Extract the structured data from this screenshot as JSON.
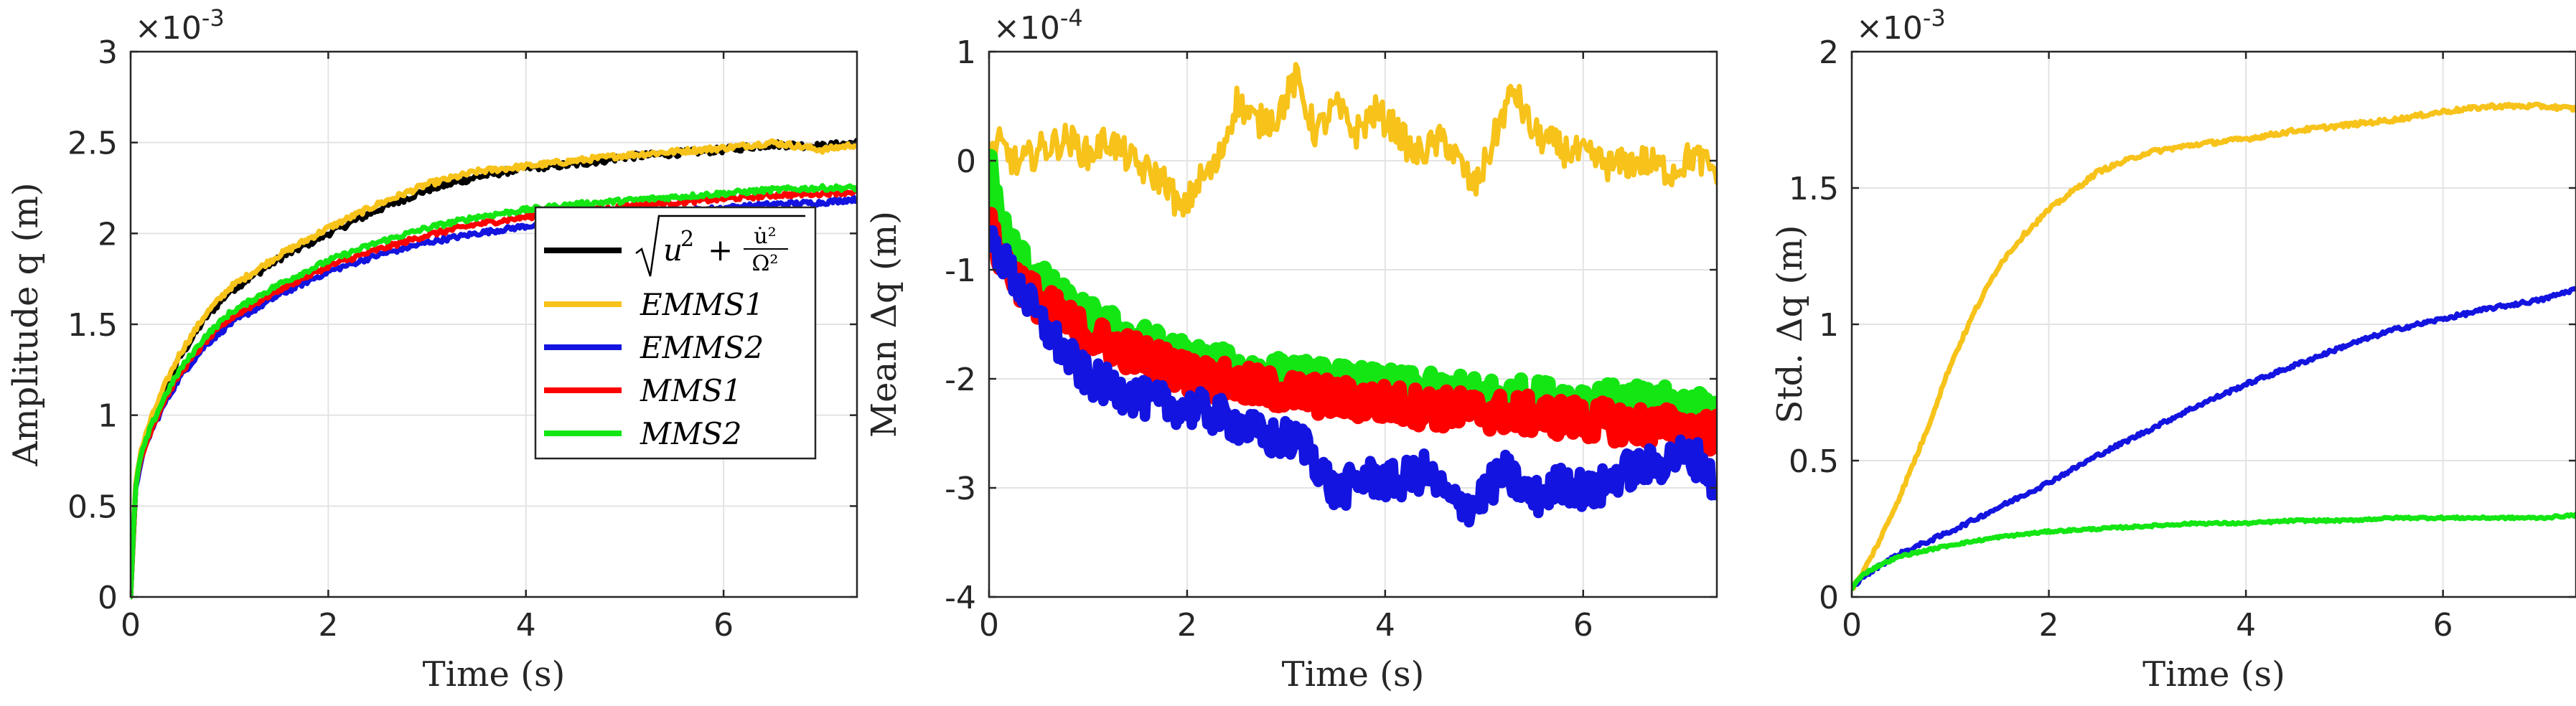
{
  "chart_data": [
    {
      "type": "line",
      "xlabel": "Time (s)",
      "ylabel": "Amplitude q (m)",
      "exponent": "×10",
      "exponent_power": "-3",
      "xlim": [
        0,
        7.35
      ],
      "ylim": [
        0,
        3
      ],
      "xticks": [
        "0",
        "2",
        "4",
        "6"
      ],
      "yticks": [
        "0",
        "0.5",
        "1",
        "1.5",
        "2",
        "2.5",
        "3"
      ],
      "grid": true,
      "legend_position": "right",
      "series": [
        {
          "name": "√(u² + u̇²/Ω²)",
          "color": "#000000",
          "noise": 0.012,
          "x": [
            0,
            0.05,
            0.1,
            0.2,
            0.35,
            0.5,
            0.75,
            1.0,
            1.5,
            2.0,
            2.5,
            3.0,
            3.5,
            4.0,
            4.5,
            5.0,
            5.5,
            6.0,
            6.5,
            7.0,
            7.35
          ],
          "y": [
            0,
            0.6,
            0.78,
            0.95,
            1.15,
            1.32,
            1.53,
            1.68,
            1.86,
            2.0,
            2.13,
            2.24,
            2.31,
            2.36,
            2.38,
            2.42,
            2.44,
            2.46,
            2.49,
            2.48,
            2.5
          ]
        },
        {
          "name": "EMMS1",
          "color": "#f7c31a",
          "noise": 0.01,
          "x": [
            0,
            0.05,
            0.1,
            0.2,
            0.35,
            0.5,
            0.75,
            1.0,
            1.5,
            2.0,
            2.5,
            3.0,
            3.5,
            4.0,
            4.5,
            5.0,
            5.5,
            6.0,
            6.5,
            7.0,
            7.35
          ],
          "y": [
            0,
            0.62,
            0.8,
            0.97,
            1.17,
            1.34,
            1.55,
            1.7,
            1.88,
            2.03,
            2.16,
            2.27,
            2.34,
            2.37,
            2.4,
            2.43,
            2.45,
            2.47,
            2.5,
            2.46,
            2.49
          ]
        },
        {
          "name": "EMMS2",
          "color": "#1414e0",
          "noise": 0.009,
          "x": [
            0,
            0.05,
            0.1,
            0.2,
            0.35,
            0.5,
            0.75,
            1.0,
            1.5,
            2.0,
            2.5,
            3.0,
            3.5,
            4.0,
            4.5,
            5.0,
            5.5,
            6.0,
            6.5,
            7.0,
            7.35
          ],
          "y": [
            0,
            0.58,
            0.74,
            0.9,
            1.07,
            1.21,
            1.38,
            1.5,
            1.66,
            1.79,
            1.88,
            1.95,
            2.0,
            2.04,
            2.07,
            2.1,
            2.12,
            2.14,
            2.16,
            2.17,
            2.19
          ]
        },
        {
          "name": "MMS1",
          "color": "#ff0000",
          "noise": 0.009,
          "x": [
            0,
            0.05,
            0.1,
            0.2,
            0.35,
            0.5,
            0.75,
            1.0,
            1.5,
            2.0,
            2.5,
            3.0,
            3.5,
            4.0,
            4.5,
            5.0,
            5.5,
            6.0,
            6.5,
            7.0,
            7.35
          ],
          "y": [
            0,
            0.59,
            0.75,
            0.91,
            1.09,
            1.23,
            1.4,
            1.53,
            1.69,
            1.82,
            1.91,
            1.99,
            2.05,
            2.09,
            2.12,
            2.15,
            2.17,
            2.19,
            2.21,
            2.22,
            2.23
          ]
        },
        {
          "name": "MMS2",
          "color": "#14e614",
          "noise": 0.009,
          "x": [
            0,
            0.05,
            0.1,
            0.2,
            0.35,
            0.5,
            0.75,
            1.0,
            1.5,
            2.0,
            2.5,
            3.0,
            3.5,
            4.0,
            4.5,
            5.0,
            5.5,
            6.0,
            6.5,
            7.0,
            7.35
          ],
          "y": [
            0,
            0.6,
            0.77,
            0.93,
            1.11,
            1.25,
            1.43,
            1.56,
            1.72,
            1.85,
            1.95,
            2.03,
            2.09,
            2.13,
            2.16,
            2.18,
            2.2,
            2.22,
            2.24,
            2.25,
            2.25
          ]
        }
      ]
    },
    {
      "type": "line",
      "xlabel": "Time (s)",
      "ylabel": "Mean Δq (m)",
      "exponent": "×10",
      "exponent_power": "-4",
      "xlim": [
        0,
        7.35
      ],
      "ylim": [
        -4,
        1
      ],
      "xticks": [
        "0",
        "2",
        "4",
        "6"
      ],
      "yticks": [
        "-4",
        "-3",
        "-2",
        "-1",
        "0",
        "1"
      ],
      "grid": true,
      "series": [
        {
          "name": "EMMS1",
          "color": "#f7c31a",
          "noise": 0.06,
          "x": [
            0,
            0.1,
            0.3,
            0.5,
            0.8,
            1.0,
            1.2,
            1.5,
            1.8,
            1.95,
            2.1,
            2.3,
            2.5,
            2.7,
            2.9,
            3.1,
            3.3,
            3.5,
            3.7,
            3.9,
            4.1,
            4.3,
            4.6,
            4.9,
            5.0,
            5.2,
            5.3,
            5.5,
            5.8,
            6.0,
            6.3,
            6.6,
            6.9,
            7.1,
            7.35
          ],
          "y": [
            0.0,
            0.15,
            -0.05,
            0.1,
            0.2,
            0.05,
            0.2,
            -0.05,
            -0.2,
            -0.5,
            -0.2,
            -0.05,
            0.55,
            0.35,
            0.4,
            0.75,
            0.25,
            0.5,
            0.25,
            0.45,
            0.3,
            0.05,
            0.2,
            -0.25,
            -0.05,
            0.45,
            0.65,
            0.25,
            0.1,
            0.05,
            -0.05,
            0.0,
            -0.1,
            0.05,
            -0.1
          ]
        },
        {
          "name": "MMS2",
          "color": "#14e614",
          "noise": 0.07,
          "band": 0.08,
          "x": [
            0,
            0.05,
            0.1,
            0.2,
            0.35,
            0.5,
            0.75,
            1.0,
            1.5,
            2.0,
            2.5,
            3.0,
            3.5,
            4.0,
            4.5,
            5.0,
            5.5,
            6.0,
            6.5,
            7.0,
            7.35
          ],
          "y": [
            0,
            -0.3,
            -0.5,
            -0.75,
            -0.95,
            -1.1,
            -1.3,
            -1.45,
            -1.65,
            -1.82,
            -1.92,
            -1.98,
            -2.03,
            -2.08,
            -2.12,
            -2.15,
            -2.18,
            -2.2,
            -2.23,
            -2.25,
            -2.28
          ]
        },
        {
          "name": "MMS1",
          "color": "#ff0000",
          "noise": 0.07,
          "band": 0.08,
          "x": [
            0,
            0.05,
            0.1,
            0.2,
            0.35,
            0.5,
            0.75,
            1.0,
            1.5,
            2.0,
            2.5,
            3.0,
            3.5,
            4.0,
            4.5,
            5.0,
            5.5,
            6.0,
            6.5,
            7.0,
            7.35
          ],
          "y": [
            -0.6,
            -0.75,
            -0.85,
            -1.0,
            -1.15,
            -1.28,
            -1.45,
            -1.6,
            -1.78,
            -1.95,
            -2.05,
            -2.12,
            -2.18,
            -2.22,
            -2.27,
            -2.3,
            -2.33,
            -2.37,
            -2.42,
            -2.45,
            -2.5
          ]
        },
        {
          "name": "EMMS2",
          "color": "#1414e0",
          "noise": 0.07,
          "band": 0.06,
          "x": [
            0,
            0.1,
            0.3,
            0.5,
            0.8,
            1.0,
            1.3,
            1.6,
            1.9,
            2.2,
            2.5,
            2.8,
            3.0,
            3.2,
            3.5,
            3.8,
            4.1,
            4.4,
            4.7,
            4.9,
            5.2,
            5.5,
            5.8,
            6.1,
            6.4,
            6.7,
            7.0,
            7.2,
            7.35
          ],
          "y": [
            -0.7,
            -0.85,
            -1.15,
            -1.45,
            -1.8,
            -2.0,
            -2.1,
            -2.2,
            -2.25,
            -2.3,
            -2.4,
            -2.55,
            -2.55,
            -2.6,
            -3.05,
            -2.9,
            -2.95,
            -2.85,
            -3.15,
            -3.15,
            -2.85,
            -3.1,
            -2.95,
            -3.05,
            -2.85,
            -2.8,
            -2.7,
            -2.75,
            -3.05
          ]
        }
      ]
    },
    {
      "type": "line",
      "xlabel": "Time (s)",
      "ylabel": "Std. Δq (m)",
      "exponent": "×10",
      "exponent_power": "-3",
      "xlim": [
        0,
        7.35
      ],
      "ylim": [
        0,
        2
      ],
      "xticks": [
        "0",
        "2",
        "4",
        "6"
      ],
      "yticks": [
        "0",
        "0.5",
        "1",
        "1.5",
        "2"
      ],
      "grid": true,
      "series": [
        {
          "name": "EMMS1",
          "color": "#f7c31a",
          "noise": 0.008,
          "x": [
            0,
            0.1,
            0.3,
            0.5,
            0.75,
            1.0,
            1.25,
            1.5,
            1.75,
            2.0,
            2.5,
            3.0,
            3.5,
            4.0,
            4.5,
            5.0,
            5.5,
            6.0,
            6.5,
            7.0,
            7.35
          ],
          "y": [
            0.03,
            0.08,
            0.22,
            0.38,
            0.6,
            0.85,
            1.05,
            1.22,
            1.33,
            1.42,
            1.56,
            1.63,
            1.66,
            1.68,
            1.71,
            1.73,
            1.75,
            1.78,
            1.8,
            1.8,
            1.79
          ]
        },
        {
          "name": "EMMS2",
          "color": "#1414e0",
          "noise": 0.007,
          "x": [
            0,
            0.1,
            0.3,
            0.5,
            1.0,
            1.5,
            2.0,
            2.5,
            3.0,
            3.5,
            4.0,
            4.5,
            5.0,
            5.5,
            6.0,
            6.5,
            7.0,
            7.35
          ],
          "y": [
            0.03,
            0.07,
            0.12,
            0.16,
            0.24,
            0.33,
            0.42,
            0.52,
            0.61,
            0.7,
            0.78,
            0.85,
            0.92,
            0.98,
            1.02,
            1.06,
            1.09,
            1.13
          ]
        },
        {
          "name": "MMS2",
          "color": "#14e614",
          "noise": 0.004,
          "x": [
            0,
            0.1,
            0.3,
            0.5,
            1.0,
            1.5,
            2.0,
            2.5,
            3.0,
            3.5,
            4.0,
            4.5,
            5.0,
            5.5,
            6.0,
            6.5,
            7.0,
            7.35
          ],
          "y": [
            0.03,
            0.08,
            0.12,
            0.15,
            0.19,
            0.22,
            0.24,
            0.25,
            0.26,
            0.27,
            0.27,
            0.28,
            0.28,
            0.29,
            0.29,
            0.29,
            0.29,
            0.3
          ]
        }
      ]
    }
  ],
  "legend": {
    "entries": [
      {
        "text": "u",
        "sup": "2",
        "extra": "+",
        "color": "#000000",
        "is_formula": true
      },
      {
        "text": "EMMS1",
        "color": "#f7c31a"
      },
      {
        "text": "EMMS2",
        "color": "#1414e0"
      },
      {
        "text": "MMS1",
        "color": "#ff0000"
      },
      {
        "text": "MMS2",
        "color": "#14e614"
      }
    ],
    "formula_numer": "u̇²",
    "formula_denom": "Ω²"
  }
}
